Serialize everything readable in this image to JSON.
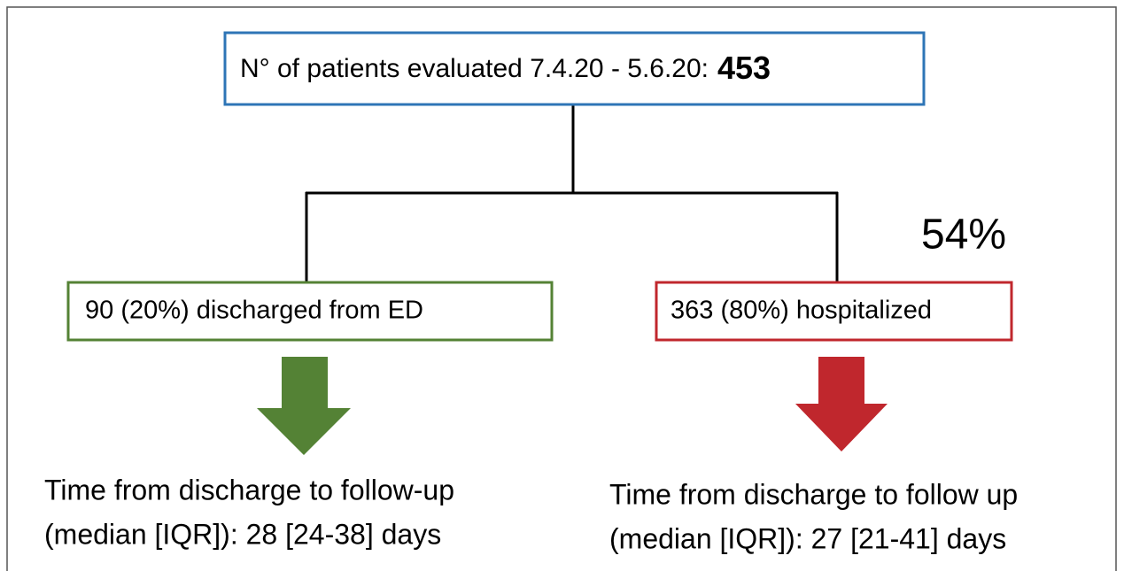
{
  "root": {
    "label": "N° of patients evaluated 7.4.20 - 5.6.20:",
    "count": "453"
  },
  "annotation": "54%",
  "branches": [
    {
      "label": "90 (20%) discharged from ED",
      "followup": [
        "Time from discharge to follow-up",
        "(median [IQR]): 28 [24-38] days"
      ]
    },
    {
      "label": "363 (80%) hospitalized",
      "followup": [
        "Time from discharge to follow up",
        "(median [IQR]): 27 [21-41] days"
      ]
    }
  ]
}
